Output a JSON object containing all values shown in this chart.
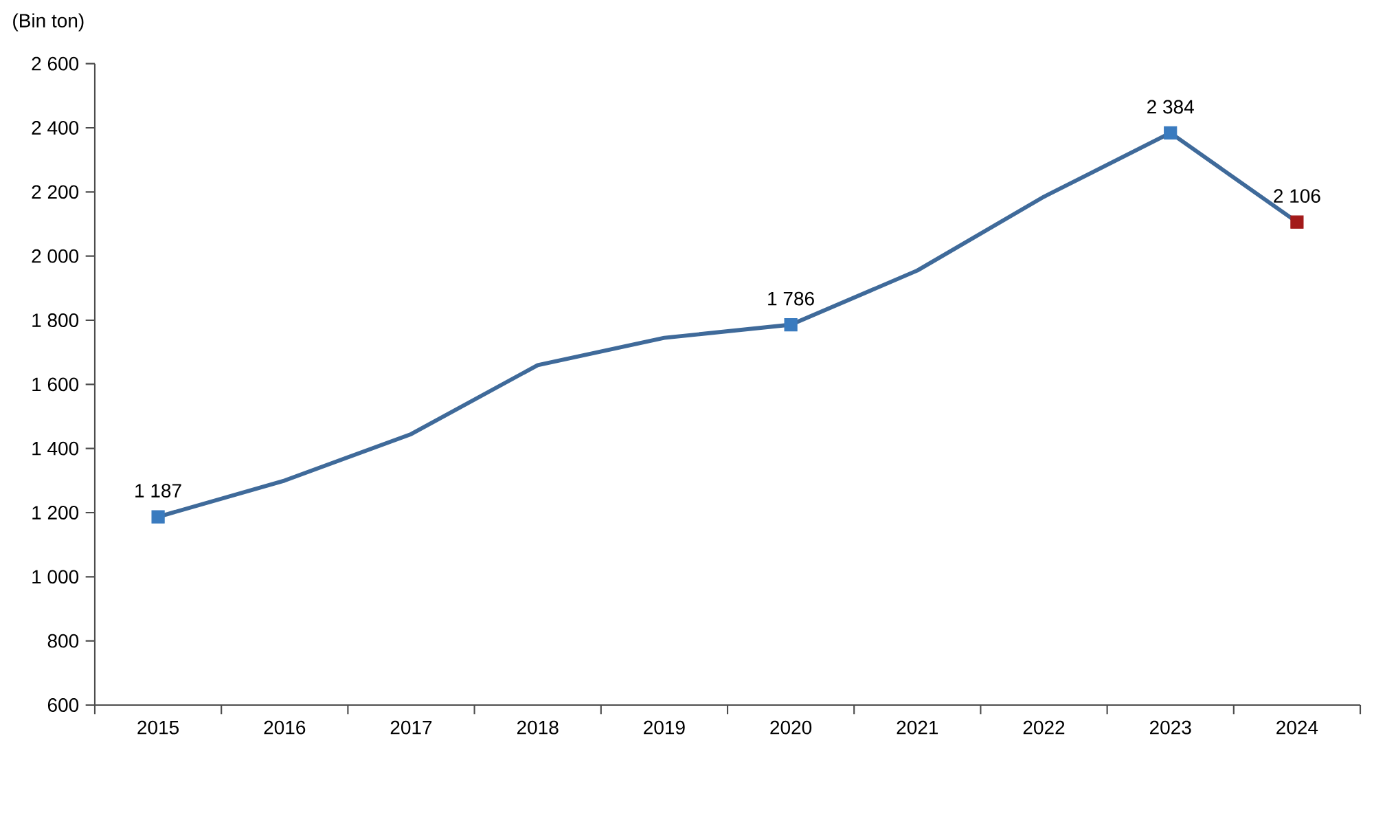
{
  "chart_data": {
    "type": "line",
    "ylabel": "(Bin ton)",
    "categories": [
      "2015",
      "2016",
      "2017",
      "2018",
      "2019",
      "2020",
      "2021",
      "2022",
      "2023",
      "2024"
    ],
    "series": [
      {
        "color": "#3f6a9a",
        "values": [
          1187,
          1300,
          1445,
          1660,
          1745,
          1786,
          1955,
          2185,
          2384,
          2106
        ],
        "marker": "none"
      },
      {
        "type": "scatter",
        "values": [
          1187,
          null,
          null,
          null,
          null,
          1786,
          null,
          null,
          2384,
          2106
        ],
        "colors": [
          "#3a7bbf",
          null,
          null,
          null,
          null,
          "#3a7bbf",
          null,
          null,
          "#3a7bbf",
          "#a31a1a"
        ],
        "marker": "square",
        "value_labels": [
          "1 187",
          null,
          null,
          null,
          null,
          "1 786",
          null,
          null,
          "2 384",
          "2 106"
        ]
      }
    ],
    "ylim": [
      600,
      2600
    ],
    "yticks": [
      {
        "value": 600,
        "label": "600"
      },
      {
        "value": 800,
        "label": "800"
      },
      {
        "value": 1000,
        "label": "1 000"
      },
      {
        "value": 1200,
        "label": "1 200"
      },
      {
        "value": 1400,
        "label": "1 400"
      },
      {
        "value": 1600,
        "label": "1 600"
      },
      {
        "value": 1800,
        "label": "1 800"
      },
      {
        "value": 2000,
        "label": "2 000"
      },
      {
        "value": 2200,
        "label": "2 200"
      },
      {
        "value": 2400,
        "label": "2 400"
      },
      {
        "value": 2600,
        "label": "2 600"
      }
    ],
    "grid": false
  }
}
